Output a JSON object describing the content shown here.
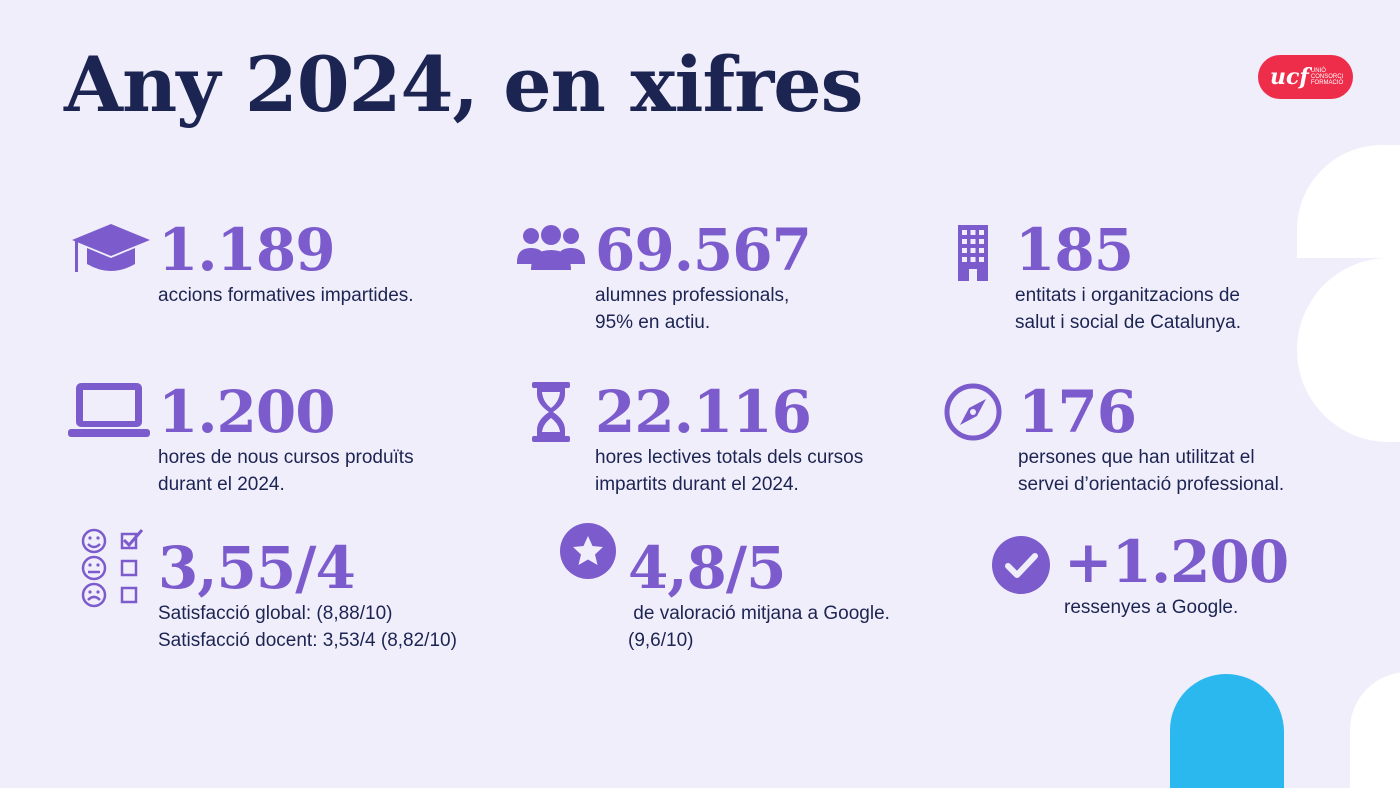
{
  "title": "Any 2024, en xifres",
  "logo": {
    "main": "ucf",
    "sub": "UNIÓ CONSORCI FORMACIÓ"
  },
  "colors": {
    "accent": "#7c5ccc",
    "navy": "#1c2452",
    "logo": "#ee2d4a",
    "blue": "#2bb8ef",
    "background": "#f1eefb"
  },
  "stats": {
    "actions": {
      "icon": "graduation-cap-icon",
      "value": "1.189",
      "lines": [
        "accions formatives impartides."
      ]
    },
    "students": {
      "icon": "group-icon",
      "value": "69.567",
      "lines": [
        "alumnes professionals,",
        "95% en actiu."
      ]
    },
    "entities": {
      "icon": "building-icon",
      "value": "185",
      "lines": [
        "entitats i organitzacions de",
        "salut i social de Catalunya."
      ]
    },
    "hours_new": {
      "icon": "laptop-icon",
      "value": "1.200",
      "lines": [
        "hores de nous cursos produïts",
        "durant el 2024."
      ]
    },
    "hours_total": {
      "icon": "hourglass-icon",
      "value": "22.116",
      "lines": [
        "hores lectives totals dels cursos",
        "impartits durant el 2024."
      ]
    },
    "guidance": {
      "icon": "compass-icon",
      "value": "176",
      "lines": [
        "persones que han utilitzat el",
        "servei d’orientació professional."
      ]
    },
    "satisfaction": {
      "icon": "satisfaction-survey-icon",
      "value": "3,55/4",
      "lines": [
        "Satisfacció global: (8,88/10)",
        "Satisfacció docent: 3,53/4 (8,82/10)"
      ]
    },
    "rating": {
      "icon": "star-icon",
      "value": "4,8/5",
      "lines": [
        " de valoració mitjana a Google.",
        "(9,6/10)"
      ]
    },
    "reviews": {
      "icon": "check-icon",
      "value": "+1.200",
      "lines": [
        "ressenyes a Google."
      ]
    }
  }
}
